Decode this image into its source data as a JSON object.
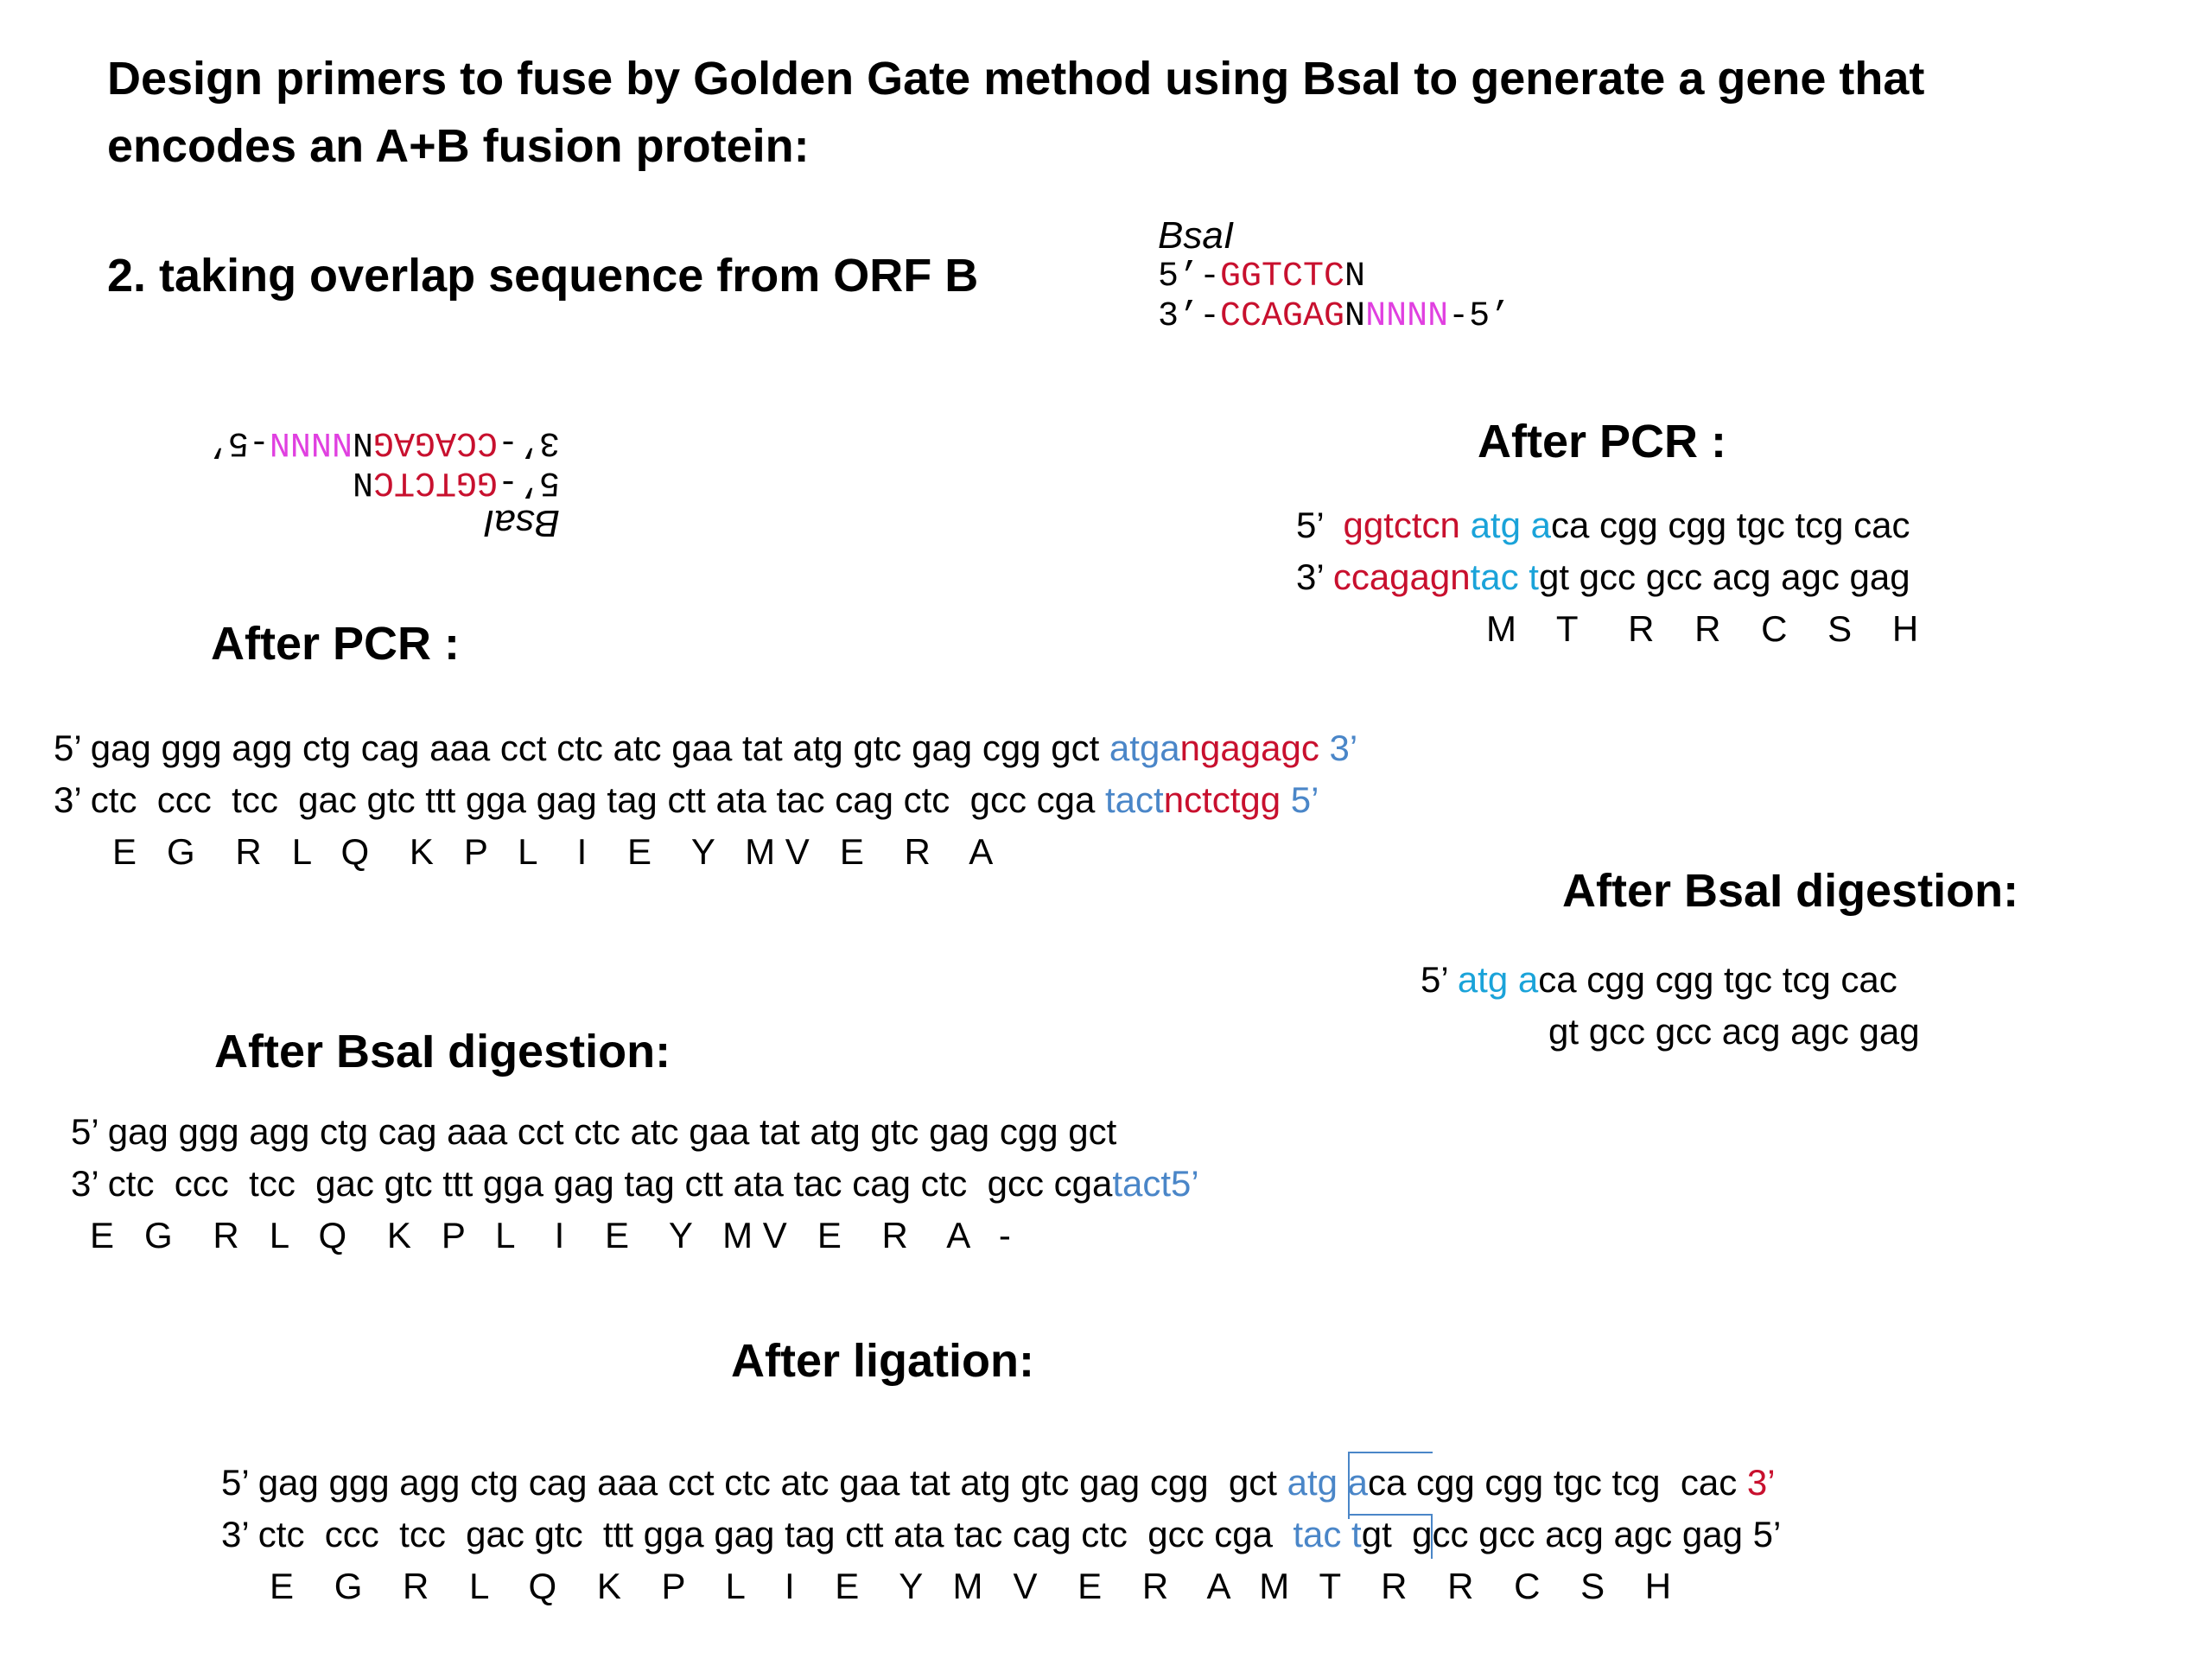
{
  "title": {
    "line1": "Design primers to fuse by Golden Gate method using BsaI to generate a gene that",
    "line2": "encodes an A+B fusion protein:"
  },
  "subtitle": "2. taking overlap sequence from ORF B",
  "bsai_site": {
    "name": "BsaI",
    "top_prefix": "5’-",
    "top_red": "GGTCTC",
    "top_n": "N",
    "bottom_prefix": "3’-",
    "bottom_red": "CCAGAG",
    "bottom_n": "N",
    "bottom_magenta": "NNNN",
    "bottom_suffix": "-5’"
  },
  "left": {
    "after_pcr_heading": "After PCR :",
    "pcr_top": {
      "prefix": "5’ gag ggg agg ctg cag aaa cct ctc atc gaa tat atg gtc gag cgg gct ",
      "blue": "atga",
      "red": "ngagagc",
      "suffix": " 3’"
    },
    "pcr_bottom": {
      "prefix": "3’ ctc  ccc  tcc  gac gtc ttt gga gag tag ctt ata tac cag ctc  gcc cga ",
      "blue": "tact",
      "red": "nctctgg",
      "suffix": " 5’"
    },
    "pcr_aa": "E   G    R   L   Q    K   P   L    I    E    Y   M V   E    R    A",
    "digest_heading": "After BsaI digestion:",
    "digest_top": "5’ gag ggg agg ctg cag aaa cct ctc atc gaa tat atg gtc gag cgg gct",
    "digest_bottom": {
      "prefix": "3’ ctc  ccc  tcc  gac gtc ttt gga gag tag ctt ata tac cag ctc  gcc cga",
      "blue": "tact5’"
    },
    "digest_aa": "E   G    R   L   Q    K   P   L    I    E    Y   M V   E    R    A   -"
  },
  "right": {
    "after_pcr_heading": "After PCR :",
    "pcr_top": {
      "prefix": "5’  ",
      "red": "ggtctcn ",
      "cyan": "atg a",
      "suffix": "ca cgg cgg tgc tcg cac"
    },
    "pcr_bottom": {
      "prefix": "3’ ",
      "red": "ccagagn",
      "cyan": "tac t",
      "suffix": "gt gcc gcc acg agc gag"
    },
    "pcr_aa": "M    T     R    R    C    S    H",
    "digest_heading": "After BsaI digestion:",
    "digest_top": {
      "prefix": "5’ ",
      "cyan": "atg a",
      "suffix": "ca cgg cgg tgc tcg cac"
    },
    "digest_bottom": "gt gcc gcc acg agc gag"
  },
  "ligation": {
    "heading": "After ligation:",
    "top": {
      "prefix": "5’ gag ggg agg ctg cag aaa cct ctc atc gaa tat atg gtc gag cgg  gct ",
      "blue": "atg a",
      "mid": "ca cgg cgg tgc tcg  cac ",
      "red": "3’"
    },
    "bottom": {
      "prefix": "3’ ctc  ccc  tcc  gac gtc  ttt gga gag tag ctt ata tac cag ctc  gcc cga  ",
      "blue": "tac t",
      "suffix": "gt  gcc gcc acg agc gag 5’"
    },
    "aa": "E    G    R    L    Q    K    P    L    I    E    Y   M   V    E    R    A   M   T    R    R    C    S    H"
  }
}
